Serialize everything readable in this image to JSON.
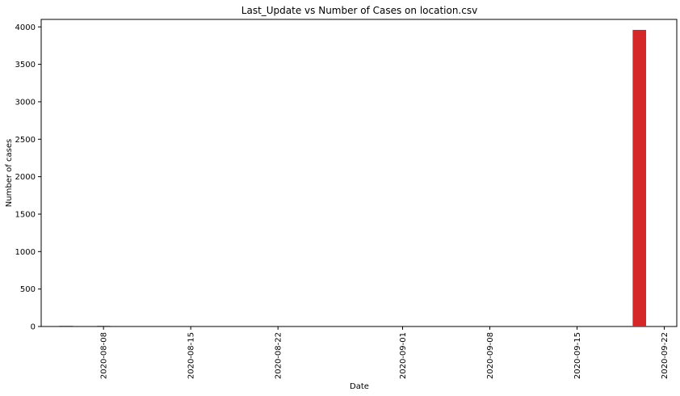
{
  "chart_data": {
    "type": "bar",
    "title": "Last_Update vs Number of Cases on location.csv",
    "xlabel": "Date",
    "ylabel": "Number of cases",
    "x_axis_type": "date",
    "xlim": [
      "2020-08-03",
      "2020-09-23"
    ],
    "ylim": [
      0,
      4100
    ],
    "x_ticks": [
      "2020-08-08",
      "2020-08-15",
      "2020-08-22",
      "2020-09-01",
      "2020-09-08",
      "2020-09-15",
      "2020-09-22"
    ],
    "y_ticks": [
      0,
      500,
      1000,
      1500,
      2000,
      2500,
      3000,
      3500,
      4000
    ],
    "grid": false,
    "bar_color": "#d62728",
    "x": [
      "2020-08-05",
      "2020-08-08",
      "2020-09-20"
    ],
    "values": [
      3,
      5,
      3960
    ]
  }
}
